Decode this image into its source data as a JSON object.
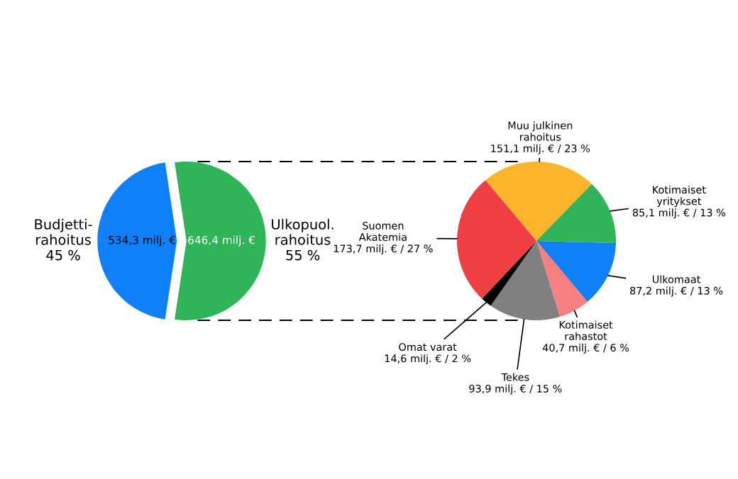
{
  "chart_data": [
    {
      "type": "pie",
      "categories": [
        "Budjetti-\nrahoitus",
        "Ulkopuol.\nrahoitus"
      ],
      "values": [
        534.3,
        646.4
      ],
      "colors": [
        "#1080f8",
        "#30b45a"
      ],
      "value_labels": [
        "534,3 milj. €",
        "646,4 milj. €"
      ],
      "annotations": [
        "45 %",
        "55 %"
      ],
      "legend": false
    },
    {
      "type": "pie",
      "categories": [
        "Muu julkinen\nrahoitus",
        "Kotimaiset\nyritykset",
        "Ulkomaat",
        "Kotimaiset\nrahastot",
        "Tekes",
        "Omat varat",
        "Suomen\nAkatemia"
      ],
      "values": [
        151.1,
        85.1,
        87.2,
        40.7,
        93.9,
        14.6,
        173.7
      ],
      "colors": [
        "#fbb52a",
        "#31b35a",
        "#1080f8",
        "#f88080",
        "#808080",
        "#000000",
        "#f04045"
      ],
      "value_labels": [
        "151,1 milj. € / 23 %",
        "85,1 milj. € / 13 %",
        "87,2 milj. € / 13 %",
        "40,7 milj. € / 6 %",
        "93,9 milj. € / 15 %",
        "14,6 milj. € / 2 %",
        "173,7 milj. € / 27 %"
      ],
      "legend": false
    }
  ]
}
